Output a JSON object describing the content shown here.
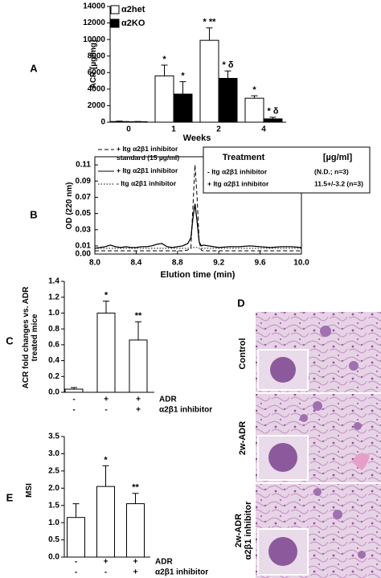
{
  "chart_data": [
    {
      "panel_label": "A",
      "type": "bar",
      "y_label": "ACR [µg/mg]",
      "x_label": "Weeks",
      "categories": [
        "0",
        "1",
        "2",
        "4"
      ],
      "series": [
        {
          "name": "α2het",
          "color": "#ffffff",
          "values": [
            80,
            5600,
            9900,
            2900
          ],
          "errors": [
            50,
            1300,
            1500,
            300
          ],
          "labels": [
            null,
            "*",
            "* **",
            "*"
          ]
        },
        {
          "name": "α2KO",
          "color": "#000000",
          "values": [
            60,
            3400,
            5300,
            400
          ],
          "errors": [
            30,
            1500,
            900,
            200
          ],
          "labels": [
            null,
            "*",
            "* δ",
            "* δ"
          ]
        }
      ],
      "ylim": [
        0,
        14000
      ],
      "yticks": [
        0,
        2000,
        4000,
        6000,
        8000,
        10000,
        12000,
        14000
      ],
      "legend": "upper left"
    },
    {
      "panel_label": "B",
      "type": "line",
      "y_label": "OD (220 nm)",
      "x_label": "Elution time (min)",
      "x": [
        8.0,
        8.05,
        8.1,
        8.15,
        8.2,
        8.25,
        8.3,
        8.35,
        8.4,
        8.45,
        8.5,
        8.55,
        8.6,
        8.65,
        8.7,
        8.75,
        8.8,
        8.85,
        8.9,
        8.93,
        8.95,
        8.97,
        8.99,
        9.01,
        9.03,
        9.05,
        9.1,
        9.15,
        9.2,
        9.3,
        9.4,
        9.5,
        9.6,
        9.7,
        9.8,
        9.9,
        10.0
      ],
      "series": [
        {
          "name": "+ Itg α2β1 inhibitor standard (15 µg/ml)",
          "color": "#000000",
          "line_style": "dashed",
          "values": [
            0.004,
            0.004,
            0.004,
            0.004,
            0.004,
            0.004,
            0.004,
            0.004,
            0.004,
            0.004,
            0.004,
            0.004,
            0.004,
            0.004,
            0.004,
            0.004,
            0.004,
            0.004,
            0.005,
            0.008,
            0.06,
            0.11,
            0.07,
            0.015,
            0.005,
            0.004,
            0.004,
            0.004,
            0.004,
            0.004,
            0.004,
            0.004,
            0.004,
            0.004,
            0.004,
            0.004,
            0.004
          ]
        },
        {
          "name": "+ Itg α2β1 inhibitor",
          "color": "#000000",
          "line_style": "solid",
          "values": [
            0.007,
            0.008,
            0.009,
            0.011,
            0.009,
            0.008,
            0.009,
            0.008,
            0.008,
            0.009,
            0.009,
            0.01,
            0.012,
            0.013,
            0.009,
            0.008,
            0.009,
            0.01,
            0.013,
            0.02,
            0.045,
            0.062,
            0.04,
            0.015,
            0.01,
            0.011,
            0.01,
            0.009,
            0.008,
            0.009,
            0.009,
            0.01,
            0.009,
            0.008,
            0.009,
            0.009,
            0.008
          ]
        },
        {
          "name": "- Itg α2β1 inhibitor",
          "color": "#000000",
          "line_style": "dotted",
          "values": [
            0.007,
            0.007,
            0.007,
            0.007,
            0.007,
            0.007,
            0.007,
            0.007,
            0.007,
            0.007,
            0.007,
            0.007,
            0.007,
            0.007,
            0.007,
            0.007,
            0.007,
            0.007,
            0.007,
            0.007,
            0.008,
            0.008,
            0.008,
            0.007,
            0.007,
            0.007,
            0.007,
            0.007,
            0.007,
            0.007,
            0.007,
            0.007,
            0.007,
            0.007,
            0.007,
            0.007,
            0.007
          ]
        }
      ],
      "xlim": [
        8.0,
        10.0
      ],
      "xticks": [
        {
          "value": 8.0,
          "label": "8.0"
        },
        8.4,
        8.8,
        9.2,
        9.6,
        {
          "value": 10.0,
          "label": "10.0"
        }
      ],
      "ylim": [
        0,
        0.12
      ],
      "yticks": [
        {
          "value": 0,
          "label": "0.00"
        },
        0.01,
        0.03,
        0.05,
        0.07,
        0.09,
        0.11
      ],
      "legend": "upper left",
      "table": {
        "header": [
          "Treatment",
          "[µg/ml]"
        ],
        "rows": [
          [
            "- Itg α2β1 inhibitor",
            "(N.D.; n=3)"
          ],
          [
            "+ Itg α2β1 inhibitor",
            "11.5+/-3.2 (n=3)"
          ]
        ]
      }
    },
    {
      "panel_label": "C",
      "type": "bar",
      "y_label": "ACR fold changes vs. ADR treated mice",
      "conditions": [
        {
          "name": "ADR",
          "values": [
            "-",
            "+",
            "+"
          ]
        },
        {
          "name": "α2β1 inhibitor",
          "values": [
            "-",
            "-",
            "+"
          ]
        }
      ],
      "series": [
        {
          "color": "#ffffff",
          "values": [
            0.04,
            1.0,
            0.66
          ],
          "errors": [
            0.02,
            0.15,
            0.23
          ],
          "labels": [
            null,
            "*",
            "**"
          ]
        }
      ],
      "ylim": [
        0,
        1.4
      ],
      "yticks": [
        {
          "value": 0,
          "label": "0.0"
        },
        0.2,
        0.4,
        0.6,
        0.8,
        {
          "value": 1,
          "label": "1.0"
        },
        1.2,
        1.4
      ]
    },
    {
      "panel_label": "E",
      "type": "bar",
      "y_label": "MSI",
      "conditions": [
        {
          "name": "ADR",
          "values": [
            "-",
            "+",
            "+"
          ]
        },
        {
          "name": "α2β1 inhibitor",
          "values": [
            "-",
            "-",
            "+"
          ]
        }
      ],
      "series": [
        {
          "color": "#ffffff",
          "values": [
            1.15,
            2.05,
            1.55
          ],
          "errors": [
            0.4,
            0.6,
            0.3
          ],
          "labels": [
            null,
            "*",
            "**"
          ]
        }
      ],
      "ylim": [
        0,
        3.5
      ],
      "yticks": [
        {
          "value": 0,
          "label": "0.0"
        },
        0.5,
        {
          "value": 1,
          "label": "1.0"
        },
        1.5,
        {
          "value": 2,
          "label": "2.0"
        },
        2.5,
        {
          "value": 3,
          "label": "3.0"
        },
        3.5
      ]
    }
  ],
  "panel_d": {
    "panel_label": "D",
    "labels": [
      "Control",
      "2w-ADR",
      "2w-ADR",
      "α2β1 inhibitor"
    ]
  }
}
